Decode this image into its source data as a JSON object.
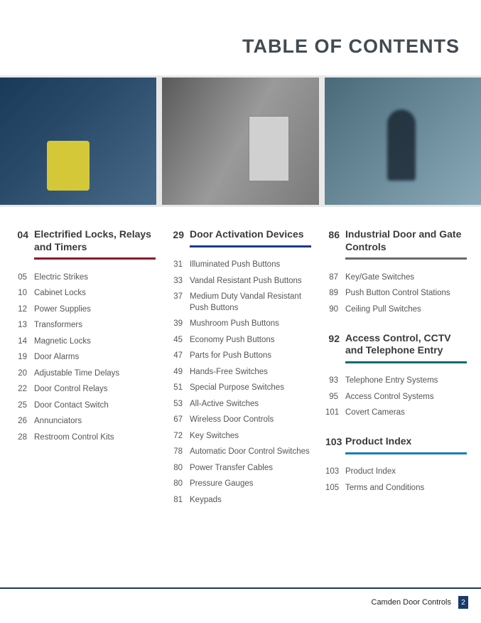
{
  "title": "TABLE OF CONTENTS",
  "colors": {
    "title_text": "#434a51",
    "section_text": "#3a3a3a",
    "entry_text": "#555555",
    "footer_rule": "#1a3a6a",
    "badge_bg": "#1a3a6a",
    "underline_red": "#8a1a2a",
    "underline_blue": "#1a3a8a",
    "underline_gray": "#6a6a6a",
    "underline_teal": "#0a6a7a",
    "underline_lightblue": "#1a7ac0"
  },
  "images": [
    {
      "alt": "Person in wheelchair at automatic door"
    },
    {
      "alt": "Hand pressing push-to-open plate"
    },
    {
      "alt": "Silhouette walking through glass door"
    }
  ],
  "sections": [
    {
      "column": 0,
      "page": "04",
      "title": "Electrified Locks, Relays and Timers",
      "underline_color": "#8a1a2a",
      "entries": [
        {
          "page": "05",
          "title": "Electric Strikes"
        },
        {
          "page": "10",
          "title": "Cabinet Locks"
        },
        {
          "page": "12",
          "title": "Power Supplies"
        },
        {
          "page": "13",
          "title": "Transformers"
        },
        {
          "page": "14",
          "title": "Magnetic Locks"
        },
        {
          "page": "19",
          "title": "Door Alarms"
        },
        {
          "page": "20",
          "title": "Adjustable Time Delays"
        },
        {
          "page": "22",
          "title": "Door Control Relays"
        },
        {
          "page": "25",
          "title": "Door Contact Switch"
        },
        {
          "page": "26",
          "title": "Annunciators"
        },
        {
          "page": "28",
          "title": "Restroom Control Kits"
        }
      ]
    },
    {
      "column": 1,
      "page": "29",
      "title": "Door Activation Devices",
      "underline_color": "#1a3a8a",
      "entries": [
        {
          "page": "31",
          "title": "Illuminated Push Buttons"
        },
        {
          "page": "33",
          "title": "Vandal Resistant Push Buttons"
        },
        {
          "page": "37",
          "title": "Medium Duty Vandal Resistant Push Buttons"
        },
        {
          "page": "39",
          "title": "Mushroom Push Buttons"
        },
        {
          "page": "45",
          "title": "Economy Push Buttons"
        },
        {
          "page": "47",
          "title": "Parts for Push Buttons"
        },
        {
          "page": "49",
          "title": "Hands-Free Switches"
        },
        {
          "page": "51",
          "title": "Special Purpose Switches"
        },
        {
          "page": "53",
          "title": "All-Active Switches"
        },
        {
          "page": "67",
          "title": "Wireless Door Controls"
        },
        {
          "page": "72",
          "title": "Key Switches"
        },
        {
          "page": "78",
          "title": "Automatic Door Control Switches"
        },
        {
          "page": "80",
          "title": "Power Transfer Cables"
        },
        {
          "page": "80",
          "title": "Pressure Gauges"
        },
        {
          "page": "81",
          "title": "Keypads"
        }
      ]
    },
    {
      "column": 2,
      "page": "86",
      "title": "Industrial Door and Gate Controls",
      "underline_color": "#6a6a6a",
      "entries": [
        {
          "page": "87",
          "title": "Key/Gate Switches"
        },
        {
          "page": "89",
          "title": "Push Button Control Stations"
        },
        {
          "page": "90",
          "title": "Ceiling Pull Switches"
        }
      ]
    },
    {
      "column": 2,
      "page": "92",
      "title": "Access Control, CCTV and Telephone Entry",
      "underline_color": "#0a6a7a",
      "entries": [
        {
          "page": "93",
          "title": "Telephone Entry Systems"
        },
        {
          "page": "95",
          "title": "Access Control Systems"
        },
        {
          "page": "101",
          "title": "Covert Cameras"
        }
      ]
    },
    {
      "column": 2,
      "page": "103",
      "title": "Product Index",
      "underline_color": "#1a7ac0",
      "entries": [
        {
          "page": "103",
          "title": "Product Index"
        },
        {
          "page": "105",
          "title": "Terms and Conditions"
        }
      ]
    }
  ],
  "footer": {
    "text": "Camden Door Controls",
    "page_number": "2"
  }
}
